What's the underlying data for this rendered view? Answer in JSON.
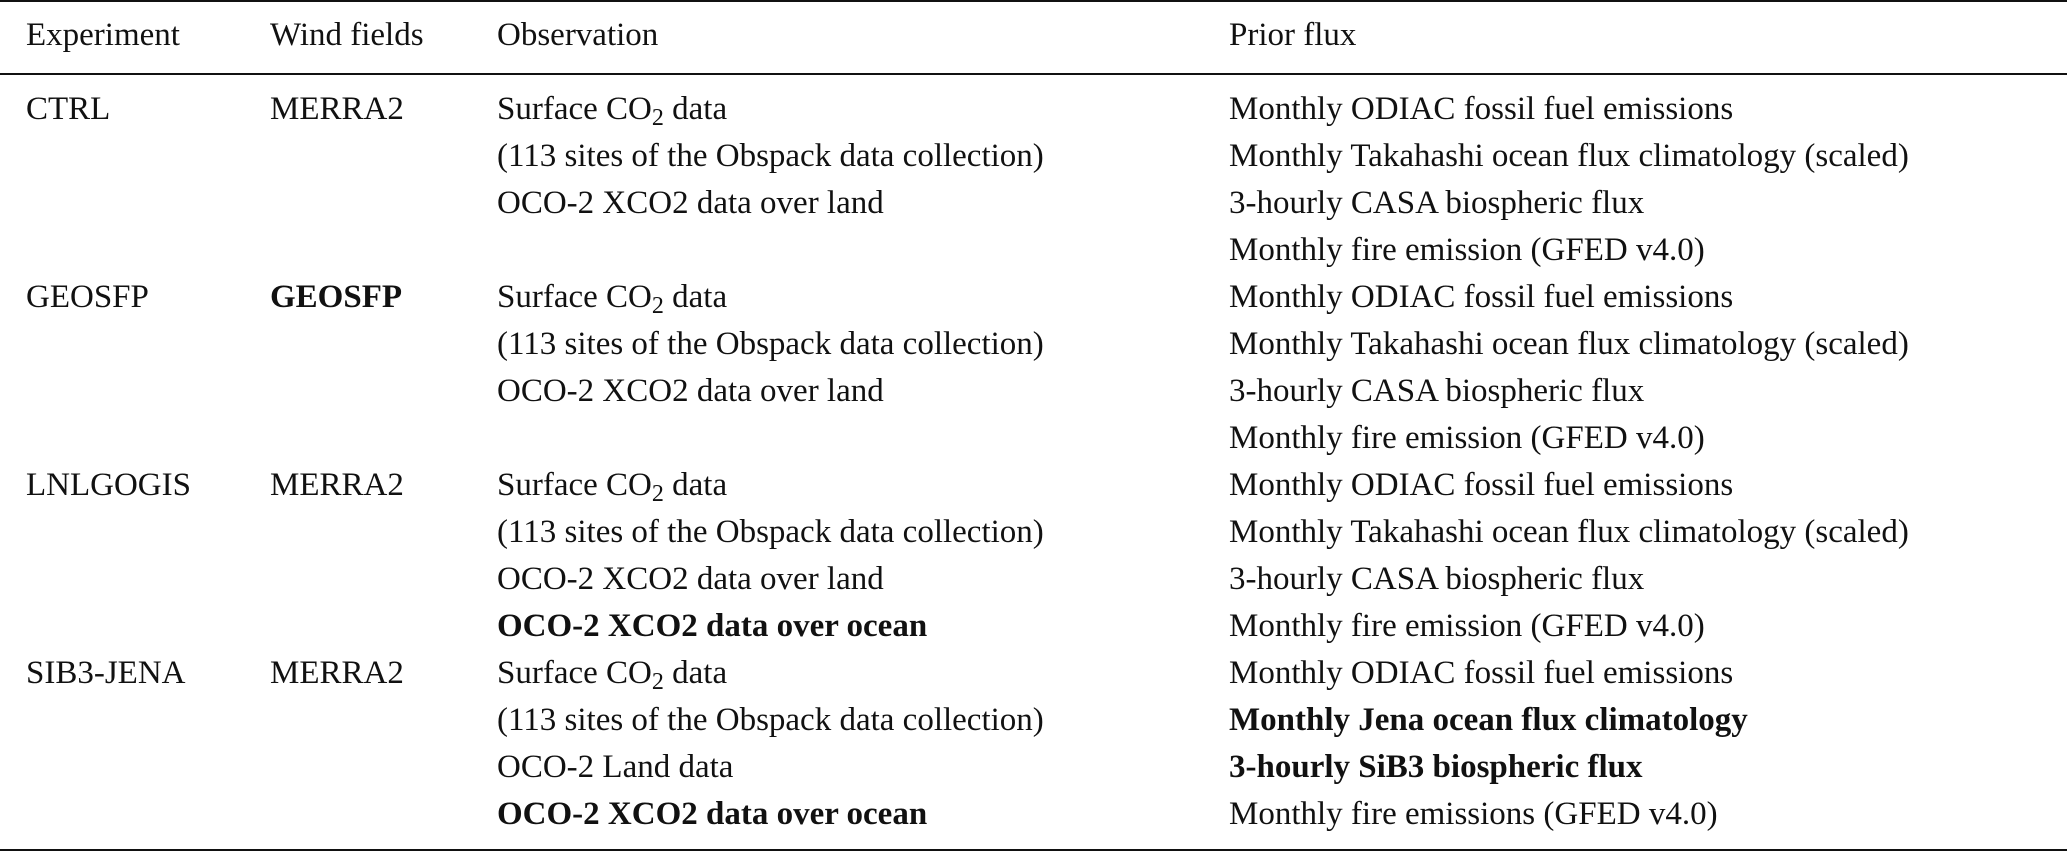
{
  "header": {
    "experiment": "Experiment",
    "wind_fields": "Wind fields",
    "observation": "Observation",
    "prior_flux": "Prior flux"
  },
  "rows": [
    {
      "experiment": "CTRL",
      "wind": "MERRA2",
      "obs": [
        {
          "pre": "Surface CO",
          "sub": "2",
          "post": " data"
        },
        {
          "text": "(113 sites of the Obspack data collection)"
        },
        {
          "text": "OCO-2 XCO2 data over land"
        }
      ],
      "prior": [
        "Monthly ODIAC fossil fuel emissions",
        "Monthly Takahashi ocean flux climatology (scaled)",
        "3-hourly CASA biospheric flux",
        "Monthly fire emission (GFED v4.0)"
      ]
    },
    {
      "experiment": "GEOSFP",
      "wind": "GEOSFP",
      "obs": [
        {
          "pre": "Surface CO",
          "sub": "2",
          "post": " data"
        },
        {
          "text": "(113 sites of the Obspack data collection)"
        },
        {
          "text": "OCO-2 XCO2 data over land"
        }
      ],
      "prior": [
        "Monthly ODIAC fossil fuel emissions",
        "Monthly Takahashi ocean flux climatology (scaled)",
        "3-hourly CASA biospheric flux",
        "Monthly fire emission (GFED v4.0)"
      ]
    },
    {
      "experiment": "LNLGOGIS",
      "wind": "MERRA2",
      "obs": [
        {
          "pre": "Surface CO",
          "sub": "2",
          "post": " data"
        },
        {
          "text": "(113 sites of the Obspack data collection)"
        },
        {
          "text": "OCO-2 XCO2 data over land"
        },
        {
          "text": "OCO-2 XCO2 data over ocean"
        }
      ],
      "prior": [
        "Monthly ODIAC fossil fuel emissions",
        "Monthly Takahashi ocean flux climatology (scaled)",
        "3-hourly CASA biospheric flux",
        "Monthly fire emission (GFED v4.0)"
      ]
    },
    {
      "experiment": "SIB3-JENA",
      "wind": "MERRA2",
      "obs": [
        {
          "pre": "Surface CO",
          "sub": "2",
          "post": " data"
        },
        {
          "text": "(113 sites of the Obspack data collection)"
        },
        {
          "text": "OCO-2 Land data"
        },
        {
          "text": "OCO-2 XCO2 data over ocean"
        }
      ],
      "prior": [
        "Monthly ODIAC fossil fuel emissions",
        "Monthly Jena ocean flux climatology",
        "3-hourly SiB3 biospheric flux",
        "Monthly fire emissions (GFED v4.0)"
      ]
    }
  ]
}
